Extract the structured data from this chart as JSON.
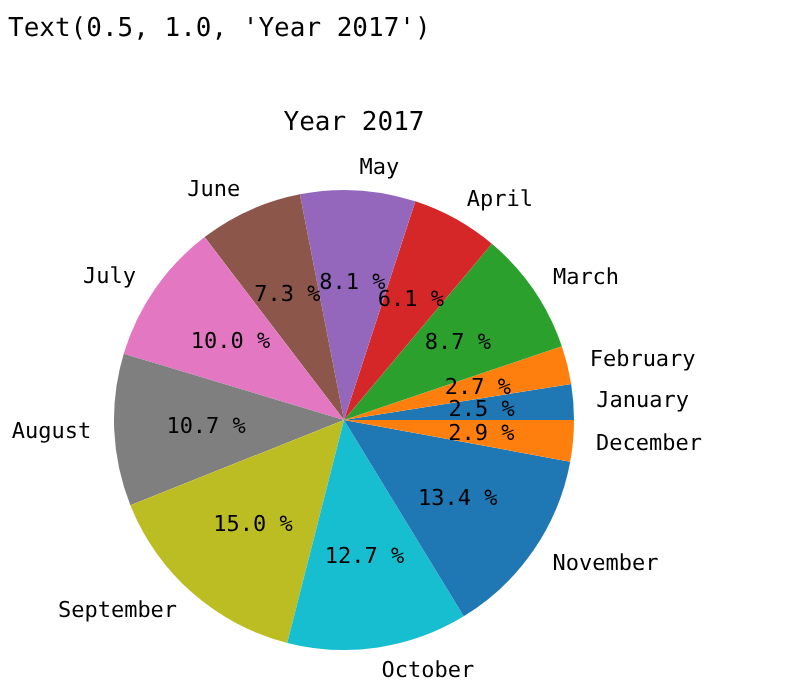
{
  "chart_data": {
    "type": "pie",
    "title": "Year 2017",
    "annotations": [
      "Text(0.5, 1.0, 'Year 2017')"
    ],
    "categories": [
      "January",
      "February",
      "March",
      "April",
      "May",
      "June",
      "July",
      "August",
      "September",
      "October",
      "November",
      "December"
    ],
    "values": [
      2.5,
      2.7,
      8.7,
      6.1,
      8.1,
      7.3,
      10.0,
      10.7,
      15.0,
      12.7,
      13.4,
      2.9
    ],
    "value_labels": [
      "2.5 %",
      "2.7 %",
      "8.7 %",
      "6.1 %",
      "8.1 %",
      "7.3 %",
      "10.0 %",
      "10.7 %",
      "15.0 %",
      "12.7 %",
      "13.4 %",
      "2.9 %"
    ],
    "colors": [
      "#1f77b4",
      "#ff7f0e",
      "#2ca02c",
      "#d62728",
      "#9467bd",
      "#8c564b",
      "#e377c2",
      "#7f7f7f",
      "#bcbd22",
      "#17becf",
      "#1f77b4",
      "#ff7f0e"
    ]
  }
}
